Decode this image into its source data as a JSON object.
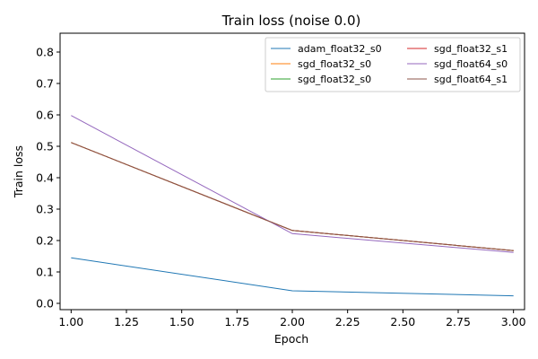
{
  "chart_data": {
    "type": "line",
    "title": "Train loss (noise 0.0)",
    "xlabel": "Epoch",
    "ylabel": "Train loss",
    "xlim": [
      0.95,
      3.05
    ],
    "ylim": [
      -0.02,
      0.86
    ],
    "x": [
      1.0,
      2.0,
      3.0
    ],
    "x_ticks": [
      1.0,
      1.25,
      1.5,
      1.75,
      2.0,
      2.25,
      2.5,
      2.75,
      3.0
    ],
    "x_tick_labels": [
      "1.00",
      "1.25",
      "1.50",
      "1.75",
      "2.00",
      "2.25",
      "2.50",
      "2.75",
      "3.00"
    ],
    "y_ticks": [
      0.0,
      0.1,
      0.2,
      0.3,
      0.4,
      0.5,
      0.6,
      0.7,
      0.8
    ],
    "y_tick_labels": [
      "0.0",
      "0.1",
      "0.2",
      "0.3",
      "0.4",
      "0.5",
      "0.6",
      "0.7",
      "0.8"
    ],
    "grid": false,
    "legend_position": "top-right",
    "series": [
      {
        "name": "adam_float32_s0",
        "color": "#1f77b4",
        "values": [
          0.145,
          0.04,
          0.024
        ]
      },
      {
        "name": "sgd_float32_s0",
        "color": "#ff7f0e",
        "values": [
          0.512,
          0.232,
          0.168
        ]
      },
      {
        "name": "sgd_float32_s0",
        "color": "#2ca02c",
        "values": [
          0.512,
          0.232,
          0.168
        ]
      },
      {
        "name": "sgd_float32_s1",
        "color": "#d62728",
        "values": [
          0.512,
          0.232,
          0.168
        ]
      },
      {
        "name": "sgd_float64_s0",
        "color": "#9467bd",
        "values": [
          0.598,
          0.222,
          0.162
        ]
      },
      {
        "name": "sgd_float64_s1",
        "color": "#8c564b",
        "values": [
          0.512,
          0.232,
          0.168
        ]
      }
    ]
  }
}
